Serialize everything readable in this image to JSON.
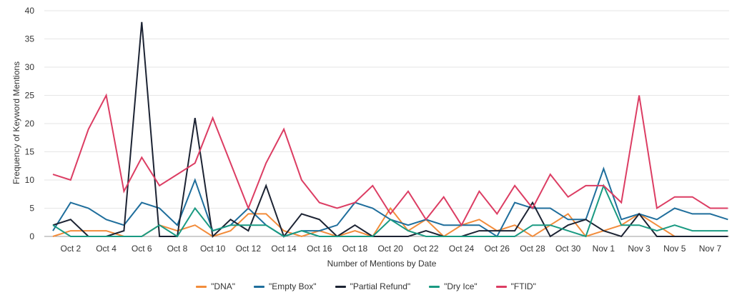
{
  "chart_data": {
    "type": "line",
    "title": "",
    "xlabel": "Number of Mentions by Date",
    "ylabel": "Frequency of Keyword Mentions",
    "ylim": [
      0,
      40
    ],
    "yticks": [
      "0",
      "5",
      "10",
      "15",
      "20",
      "25",
      "30",
      "35",
      "40"
    ],
    "grid": "horizontal",
    "legend_position": "bottom",
    "x": [
      "Oct 1",
      "Oct 2",
      "Oct 3",
      "Oct 4",
      "Oct 5",
      "Oct 6",
      "Oct 7",
      "Oct 8",
      "Oct 9",
      "Oct 10",
      "Oct 11",
      "Oct 12",
      "Oct 13",
      "Oct 14",
      "Oct 15",
      "Oct 16",
      "Oct 17",
      "Oct 18",
      "Oct 19",
      "Oct 20",
      "Oct 21",
      "Oct 22",
      "Oct 23",
      "Oct 24",
      "Oct 25",
      "Oct 26",
      "Oct 27",
      "Oct 28",
      "Oct 29",
      "Oct 30",
      "Oct 31",
      "Nov 1",
      "Nov 2",
      "Nov 3",
      "Nov 4",
      "Nov 5",
      "Nov 6",
      "Nov 7",
      "Nov 8"
    ],
    "xtick_labels": [
      "Oct 2",
      "Oct 4",
      "Oct 6",
      "Oct 8",
      "Oct 10",
      "Oct 12",
      "Oct 14",
      "Oct 16",
      "Oct 18",
      "Oct 20",
      "Oct 22",
      "Oct 24",
      "Oct 26",
      "Oct 28",
      "Oct 30",
      "Nov 1",
      "Nov 3",
      "Nov 5",
      "Nov 7"
    ],
    "series": [
      {
        "name": "\"DNA\"",
        "color": "#f28c3b",
        "values": [
          0,
          1,
          1,
          1,
          0,
          0,
          2,
          1,
          2,
          0,
          1,
          4,
          4,
          1,
          0,
          1,
          0,
          1,
          0,
          5,
          1,
          3,
          0,
          2,
          3,
          1,
          2,
          0,
          2,
          4,
          0,
          1,
          2,
          4,
          2,
          0,
          0,
          0,
          0
        ]
      },
      {
        "name": "\"Empty Box\"",
        "color": "#1f6e9c",
        "values": [
          1,
          6,
          5,
          3,
          2,
          6,
          5,
          2,
          10,
          1,
          2,
          5,
          2,
          0,
          1,
          1,
          2,
          6,
          5,
          3,
          2,
          3,
          2,
          2,
          2,
          0,
          6,
          5,
          5,
          3,
          3,
          12,
          3,
          4,
          3,
          5,
          4,
          4,
          3
        ]
      },
      {
        "name": "\"Partial Refund\"",
        "color": "#1c2333",
        "values": [
          2,
          3,
          0,
          0,
          1,
          38,
          0,
          0,
          21,
          0,
          3,
          1,
          9,
          0,
          4,
          3,
          0,
          2,
          0,
          0,
          0,
          1,
          0,
          0,
          1,
          1,
          1,
          6,
          0,
          2,
          3,
          1,
          0,
          4,
          0,
          0,
          0,
          0,
          0
        ]
      },
      {
        "name": "\"Dry Ice\"",
        "color": "#1a9a82",
        "values": [
          2,
          0,
          0,
          0,
          0,
          0,
          2,
          0,
          5,
          1,
          2,
          2,
          2,
          0,
          1,
          0,
          0,
          0,
          0,
          3,
          1,
          0,
          0,
          0,
          0,
          0,
          0,
          2,
          2,
          1,
          0,
          9,
          2,
          2,
          1,
          2,
          1,
          1,
          1
        ]
      },
      {
        "name": "\"FTID\"",
        "color": "#dc3d63",
        "values": [
          11,
          10,
          19,
          25,
          8,
          14,
          9,
          11,
          13,
          21,
          13,
          5,
          13,
          19,
          10,
          6,
          5,
          6,
          9,
          4,
          8,
          3,
          7,
          2,
          8,
          4,
          9,
          5,
          11,
          7,
          9,
          9,
          6,
          25,
          5,
          7,
          7,
          5,
          5
        ]
      }
    ]
  }
}
